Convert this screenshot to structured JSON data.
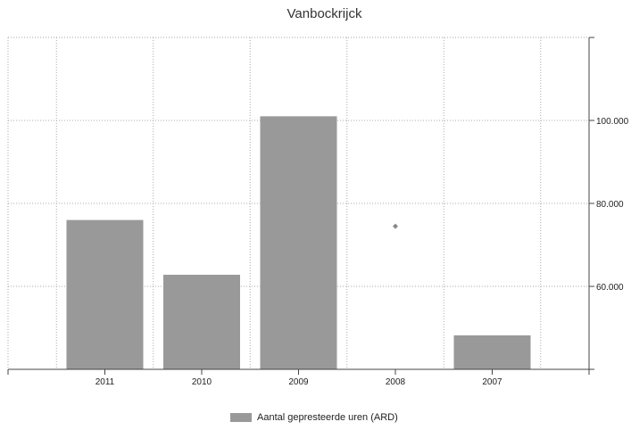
{
  "chart_data": {
    "type": "bar",
    "title": "Vanbockrijck",
    "categories": [
      "2011",
      "2010",
      "2009",
      "2008",
      "2007"
    ],
    "series": [
      {
        "name": "Aantal gepresteerde uren (ARD)",
        "values": [
          76000,
          62800,
          101000,
          null,
          48200
        ],
        "color": "#999999"
      }
    ],
    "markers": [
      {
        "category": "2008",
        "value": 74500,
        "color": "#888888"
      }
    ],
    "yticks": [
      60000,
      80000,
      100000
    ],
    "ytick_labels": [
      "60.000",
      "80.000",
      "100.000"
    ],
    "ylim": [
      40000,
      120000
    ],
    "y_axis_side": "right",
    "grid": true,
    "legend_position": "bottom"
  }
}
